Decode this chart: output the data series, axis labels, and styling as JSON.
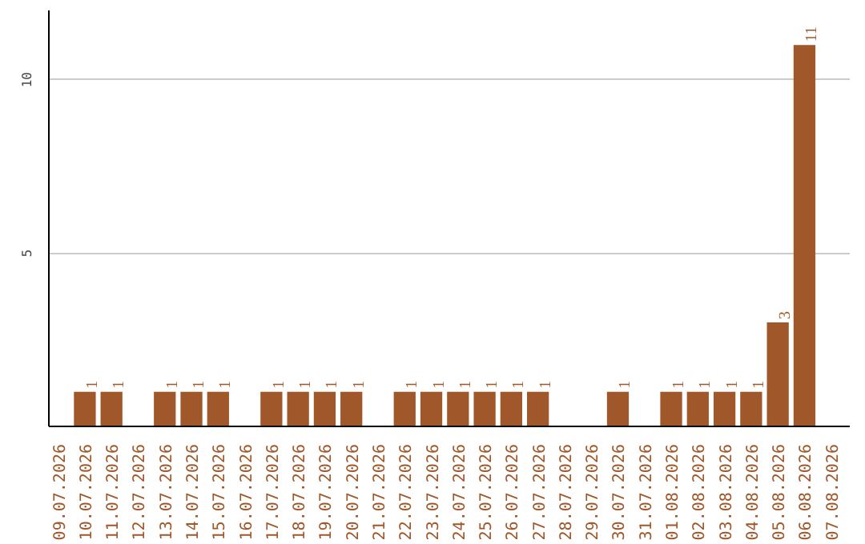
{
  "chart_data": {
    "type": "bar",
    "categories": [
      "09.07.2026",
      "10.07.2026",
      "11.07.2026",
      "12.07.2026",
      "13.07.2026",
      "14.07.2026",
      "15.07.2026",
      "16.07.2026",
      "17.07.2026",
      "18.07.2026",
      "19.07.2026",
      "20.07.2026",
      "21.07.2026",
      "22.07.2026",
      "23.07.2026",
      "24.07.2026",
      "25.07.2026",
      "26.07.2026",
      "27.07.2026",
      "28.07.2026",
      "29.07.2026",
      "30.07.2026",
      "31.07.2026",
      "01.08.2026",
      "02.08.2026",
      "03.08.2026",
      "04.08.2026",
      "05.08.2026",
      "06.08.2026",
      "07.08.2026"
    ],
    "values": [
      0,
      1,
      1,
      0,
      1,
      1,
      1,
      0,
      1,
      1,
      1,
      1,
      0,
      1,
      1,
      1,
      1,
      1,
      1,
      0,
      0,
      1,
      0,
      1,
      1,
      1,
      1,
      3,
      11,
      0
    ],
    "value_labels": [
      null,
      "1",
      "1",
      null,
      "1",
      "1",
      "1",
      null,
      "1",
      "1",
      "1",
      "1",
      null,
      "1",
      "1",
      "1",
      "1",
      "1",
      "1",
      null,
      null,
      "1",
      null,
      "1",
      "1",
      "1",
      "1",
      "3",
      "11",
      null
    ],
    "color": "#a0582a",
    "ylim": [
      0,
      12
    ],
    "yticks": [
      5,
      10
    ],
    "grid": "y"
  }
}
